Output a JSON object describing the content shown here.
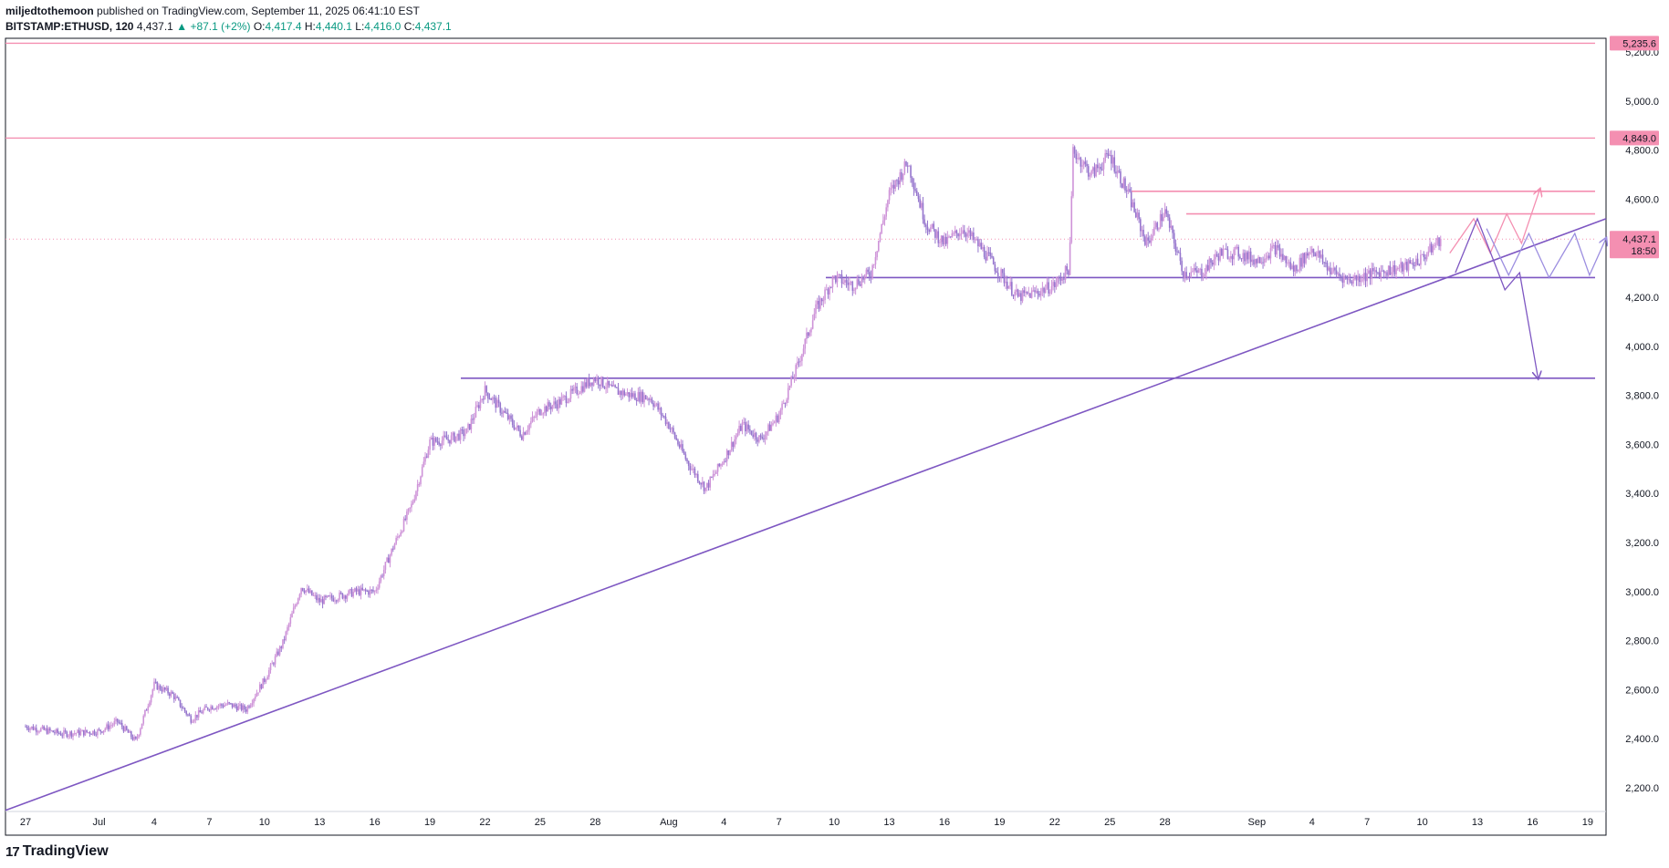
{
  "header": {
    "author": "miljedtothemoon",
    "published_text": "published on TradingView.com, September 11, 2025 06:41:10 EST",
    "symbol": "BITSTAMP:ETHUSD, 120",
    "last": "4,437.1",
    "arrow": "▲",
    "change": "+87.1 (+2%)",
    "o_label": "O:",
    "o_value": "4,417.4",
    "h_label": "H:",
    "h_value": "4,440.1",
    "l_label": "L:",
    "l_value": "4,416.0",
    "c_label": "C:",
    "c_value": "4,437.1"
  },
  "footer": {
    "logo_mark": "17",
    "logo_text": "TradingView"
  },
  "colors": {
    "pink": "#f48fb1",
    "purple": "#7e57c2",
    "candle": "#ce93d8",
    "candle_alt": "#9575cd",
    "up": "#089981",
    "label_bg": "#f48fb1"
  },
  "chart_data": {
    "type": "candlestick",
    "symbol": "BITSTAMP:ETHUSD",
    "interval": "120",
    "y_range": [
      2100,
      5300
    ],
    "y_ticks": [
      2200,
      2400,
      2600,
      2800,
      3000,
      3200,
      3400,
      3600,
      3800,
      4000,
      4200,
      4400,
      4600,
      4800,
      5000,
      5200
    ],
    "y_tick_labels": [
      "2,200.0",
      "2,400.0",
      "2,600.0",
      "2,800.0",
      "3,000.0",
      "3,200.0",
      "3,400.0",
      "3,600.0",
      "3,800.0",
      "4,000.0",
      "4,200.0",
      "4,400.0",
      "4,600.0",
      "4,800.0",
      "5,000.0",
      "5,200.0"
    ],
    "x_ticks": [
      "27",
      "Jul",
      "4",
      "7",
      "10",
      "13",
      "16",
      "19",
      "22",
      "25",
      "28",
      "Aug",
      "4",
      "7",
      "10",
      "13",
      "16",
      "19",
      "22",
      "25",
      "28",
      "Sep",
      "4",
      "7",
      "10",
      "13",
      "16",
      "19"
    ],
    "x_tick_days": [
      0,
      4,
      7,
      10,
      13,
      16,
      19,
      22,
      25,
      28,
      31,
      35,
      38,
      41,
      44,
      47,
      50,
      53,
      56,
      59,
      62,
      67,
      70,
      73,
      76,
      79,
      82,
      85
    ],
    "x_range_days": [
      0,
      86
    ],
    "price_path": [
      [
        0,
        2450
      ],
      [
        2,
        2420
      ],
      [
        4,
        2430
      ],
      [
        5,
        2470
      ],
      [
        6,
        2390
      ],
      [
        7,
        2620
      ],
      [
        8,
        2580
      ],
      [
        9,
        2480
      ],
      [
        10,
        2530
      ],
      [
        11,
        2540
      ],
      [
        12,
        2520
      ],
      [
        13,
        2640
      ],
      [
        14,
        2790
      ],
      [
        15,
        3020
      ],
      [
        16,
        2960
      ],
      [
        17,
        2980
      ],
      [
        18,
        3000
      ],
      [
        19,
        3000
      ],
      [
        20,
        3180
      ],
      [
        21,
        3350
      ],
      [
        22,
        3610
      ],
      [
        23,
        3620
      ],
      [
        24,
        3650
      ],
      [
        25,
        3820
      ],
      [
        26,
        3730
      ],
      [
        27,
        3640
      ],
      [
        28,
        3740
      ],
      [
        29,
        3770
      ],
      [
        30,
        3820
      ],
      [
        31,
        3870
      ],
      [
        32,
        3820
      ],
      [
        33,
        3800
      ],
      [
        34,
        3790
      ],
      [
        35,
        3680
      ],
      [
        36,
        3530
      ],
      [
        37,
        3420
      ],
      [
        38,
        3540
      ],
      [
        39,
        3680
      ],
      [
        40,
        3620
      ],
      [
        41,
        3720
      ],
      [
        42,
        3920
      ],
      [
        43,
        4150
      ],
      [
        44,
        4280
      ],
      [
        45,
        4250
      ],
      [
        46,
        4300
      ],
      [
        47,
        4620
      ],
      [
        48,
        4750
      ],
      [
        49,
        4500
      ],
      [
        50,
        4420
      ],
      [
        51,
        4480
      ],
      [
        52,
        4400
      ],
      [
        53,
        4300
      ],
      [
        54,
        4200
      ],
      [
        55,
        4220
      ],
      [
        56,
        4250
      ],
      [
        56.8,
        4320
      ],
      [
        57,
        4800
      ],
      [
        58,
        4700
      ],
      [
        59,
        4780
      ],
      [
        60,
        4620
      ],
      [
        61,
        4420
      ],
      [
        62,
        4550
      ],
      [
        63,
        4300
      ],
      [
        64,
        4300
      ],
      [
        65,
        4380
      ],
      [
        66,
        4380
      ],
      [
        67,
        4350
      ],
      [
        68,
        4400
      ],
      [
        69,
        4310
      ],
      [
        70,
        4400
      ],
      [
        71,
        4310
      ],
      [
        72,
        4270
      ],
      [
        73,
        4290
      ],
      [
        74,
        4310
      ],
      [
        75,
        4320
      ],
      [
        76,
        4360
      ],
      [
        77,
        4437.1
      ]
    ],
    "horizontal_lines": [
      {
        "price": 5235.6,
        "label": "5,235.6"
      },
      {
        "price": 4849.0,
        "label": "4,849.0"
      },
      {
        "price": 4632
      },
      {
        "price": 4540
      },
      {
        "price": 4280
      },
      {
        "price": 3870
      }
    ],
    "trendline": {
      "from": [
        0,
        2160
      ],
      "to": [
        86,
        4520
      ]
    },
    "current_price": {
      "price": 4437.1,
      "label": "4,437.1",
      "countdown": "18:50"
    },
    "projections": [
      {
        "series": "pink",
        "points": [
          [
            77.5,
            4380
          ],
          [
            78.8,
            4520
          ],
          [
            79.7,
            4380
          ],
          [
            80.6,
            4540
          ],
          [
            81.4,
            4420
          ],
          [
            82.4,
            4640
          ]
        ]
      },
      {
        "series": "purple-down",
        "points": [
          [
            77.8,
            4300
          ],
          [
            79,
            4520
          ],
          [
            80.5,
            4230
          ],
          [
            81.3,
            4300
          ],
          [
            82.3,
            3870
          ]
        ]
      },
      {
        "series": "lilac",
        "points": [
          [
            79.5,
            4480
          ],
          [
            80.7,
            4290
          ],
          [
            81.8,
            4460
          ],
          [
            82.9,
            4280
          ],
          [
            84.3,
            4460
          ],
          [
            85.1,
            4290
          ],
          [
            86,
            4440
          ]
        ]
      }
    ]
  }
}
